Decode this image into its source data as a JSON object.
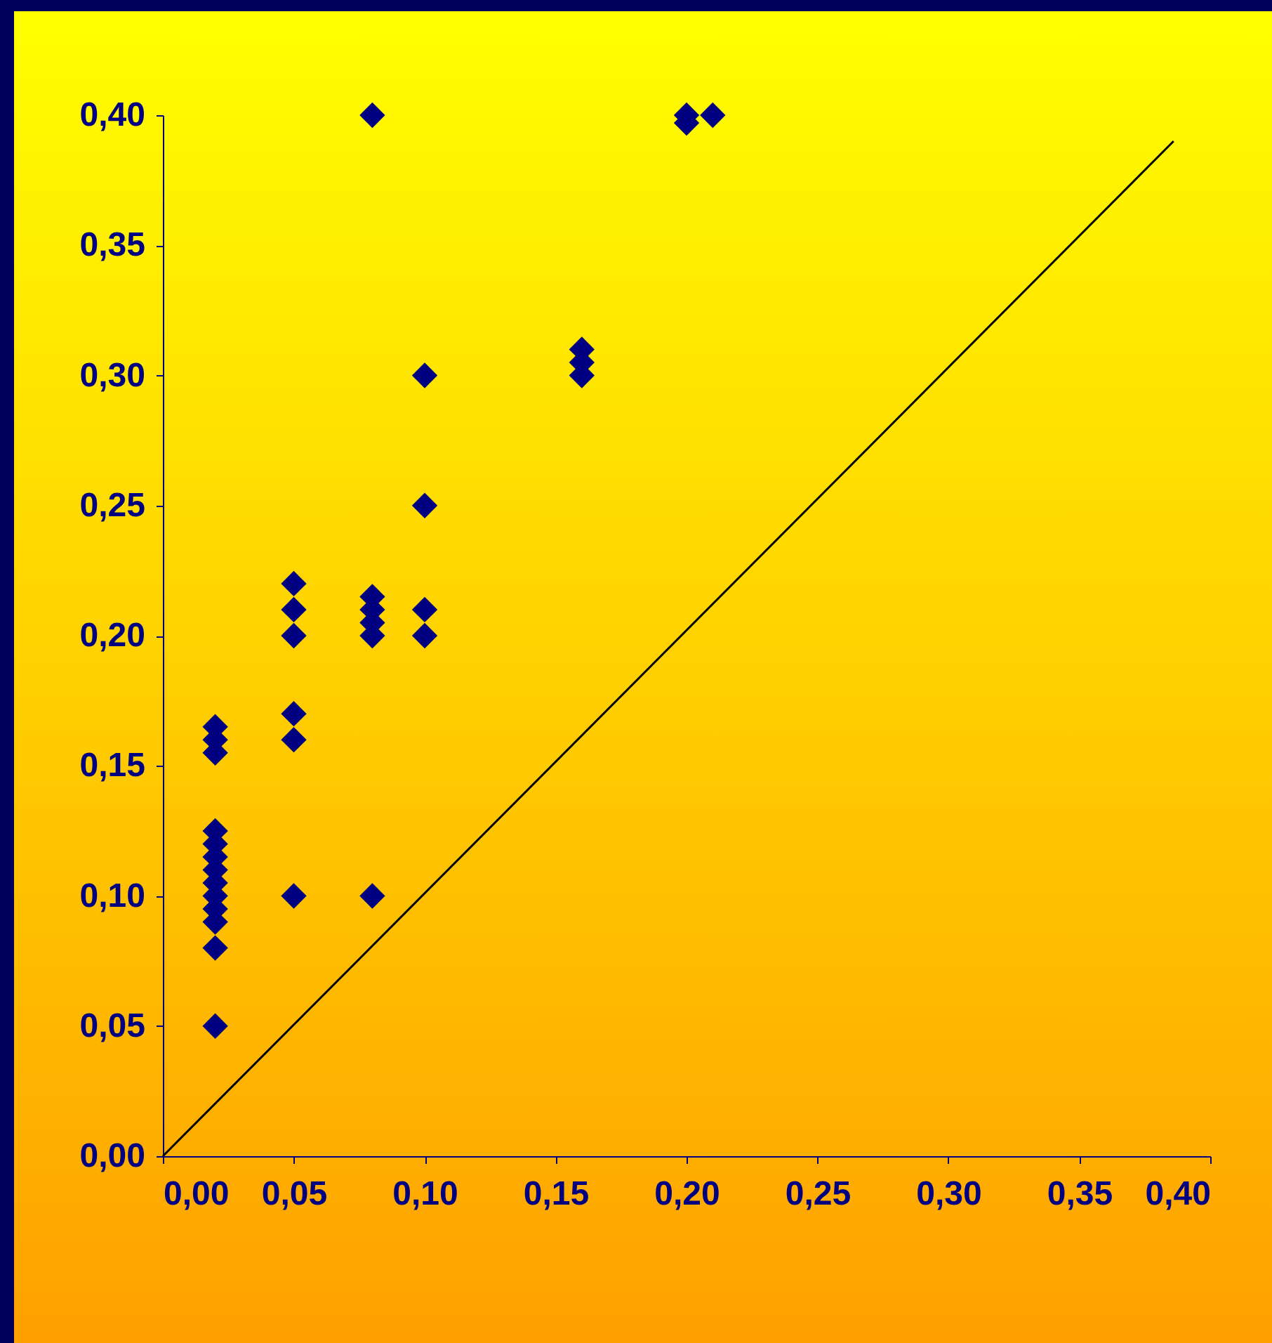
{
  "chart_data": {
    "type": "scatter",
    "xlim": [
      0,
      0.4
    ],
    "ylim": [
      0,
      0.4
    ],
    "xticks": [
      {
        "value": 0,
        "label": "0,00"
      },
      {
        "value": 0.05,
        "label": "0,05"
      },
      {
        "value": 0.1,
        "label": "0,10"
      },
      {
        "value": 0.15,
        "label": "0,15"
      },
      {
        "value": 0.2,
        "label": "0,20"
      },
      {
        "value": 0.25,
        "label": "0,25"
      },
      {
        "value": 0.3,
        "label": "0,30"
      },
      {
        "value": 0.35,
        "label": "0,35"
      },
      {
        "value": 0.4,
        "label": "0,40"
      }
    ],
    "yticks": [
      {
        "value": 0,
        "label": "0,00"
      },
      {
        "value": 0.05,
        "label": "0,05"
      },
      {
        "value": 0.1,
        "label": "0,10"
      },
      {
        "value": 0.15,
        "label": "0,15"
      },
      {
        "value": 0.2,
        "label": "0,20"
      },
      {
        "value": 0.25,
        "label": "0,25"
      },
      {
        "value": 0.3,
        "label": "0,30"
      },
      {
        "value": 0.35,
        "label": "0,35"
      },
      {
        "value": 0.4,
        "label": "0,40"
      }
    ],
    "grid": false,
    "series": [
      {
        "color": "#000080",
        "marker": "diamond",
        "x": [
          0.02,
          0.02,
          0.02,
          0.02,
          0.02,
          0.02,
          0.02,
          0.02,
          0.02,
          0.02,
          0.02,
          0.02,
          0.02,
          0.05,
          0.05,
          0.05,
          0.05,
          0.05,
          0.05,
          0.08,
          0.08,
          0.08,
          0.08,
          0.08,
          0.08,
          0.1,
          0.1,
          0.1,
          0.1,
          0.16,
          0.16,
          0.16,
          0.2,
          0.2,
          0.21
        ],
        "values": [
          0.05,
          0.08,
          0.09,
          0.095,
          0.1,
          0.105,
          0.11,
          0.115,
          0.12,
          0.125,
          0.155,
          0.16,
          0.165,
          0.1,
          0.16,
          0.17,
          0.2,
          0.21,
          0.22,
          0.1,
          0.2,
          0.205,
          0.21,
          0.215,
          0.4,
          0.2,
          0.21,
          0.25,
          0.3,
          0.3,
          0.305,
          0.31,
          0.397,
          0.4,
          0.4
        ]
      },
      {
        "type": "line",
        "color": "#000000",
        "x": [
          0,
          0.386
        ],
        "values": [
          0,
          0.39
        ]
      }
    ]
  }
}
